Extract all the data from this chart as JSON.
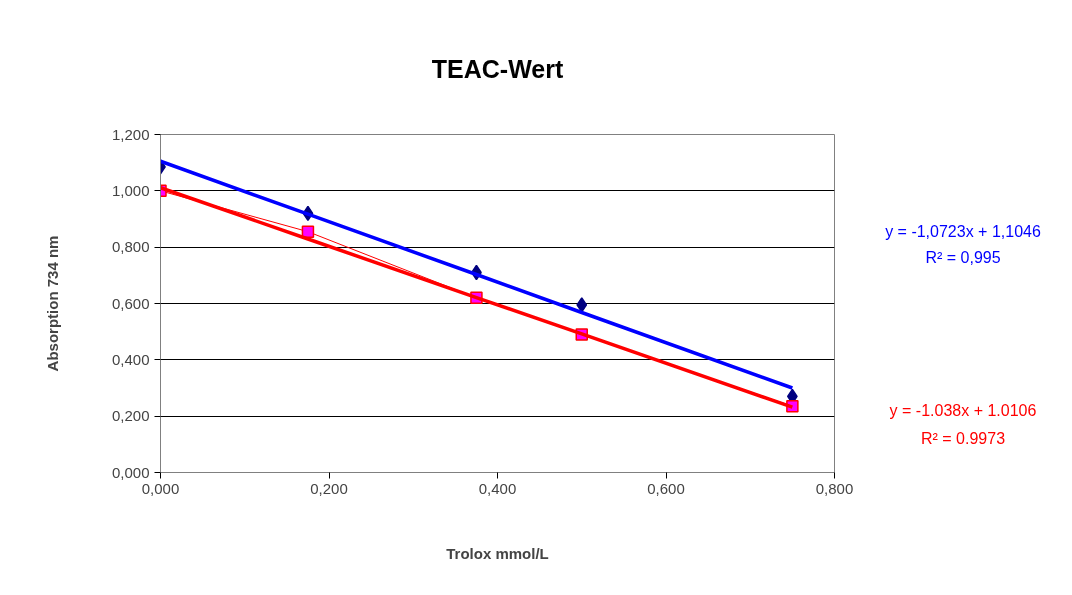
{
  "chart_data": {
    "type": "scatter",
    "title": "TEAC-Wert",
    "xlabel": "Trolox mmol/L",
    "ylabel": "Absorption 734 nm",
    "x": [
      0,
      0.175,
      0.375,
      0.5,
      0.75
    ],
    "series": [
      {
        "marker": "diamond",
        "color": "#000080",
        "values": [
          1.085,
          0.92,
          0.71,
          0.595,
          0.27
        ]
      },
      {
        "type": "line",
        "marker": "square",
        "color": "#ff0000",
        "values": [
          1.0,
          0.855,
          0.62,
          0.49,
          0.235
        ]
      },
      {
        "type": "line",
        "marker": "none",
        "color": "#0000ff",
        "values": [
          1.105,
          0.917,
          0.703,
          0.568,
          0.3
        ]
      },
      {
        "type": "line",
        "marker": "none",
        "color": "#ff0000",
        "values": [
          1.011,
          0.829,
          0.621,
          0.492,
          0.232
        ]
      }
    ],
    "annotations": [
      "y = -1,0723x + 1,1046",
      "R² = 0,995",
      "y = -1.038x + 1.0106",
      "R² = 0.9973"
    ],
    "xlim": [
      0,
      0.8
    ],
    "ylim": [
      0,
      1.2
    ],
    "xticks": [
      {
        "value": 0,
        "label": "0,000"
      },
      {
        "value": 0.2,
        "label": "0,200"
      },
      {
        "value": 0.4,
        "label": "0,400"
      },
      {
        "value": 0.6,
        "label": "0,600"
      },
      {
        "value": 0.8,
        "label": "0,800"
      }
    ],
    "yticks": [
      {
        "value": 0,
        "label": "0,000"
      },
      {
        "value": 0.2,
        "label": "0,200"
      },
      {
        "value": 0.4,
        "label": "0,400"
      },
      {
        "value": 0.6,
        "label": "0,600"
      },
      {
        "value": 0.8,
        "label": "0,800"
      },
      {
        "value": 1.0,
        "label": "1,000"
      },
      {
        "value": 1.2,
        "label": "1,200"
      }
    ],
    "grid": "y"
  }
}
